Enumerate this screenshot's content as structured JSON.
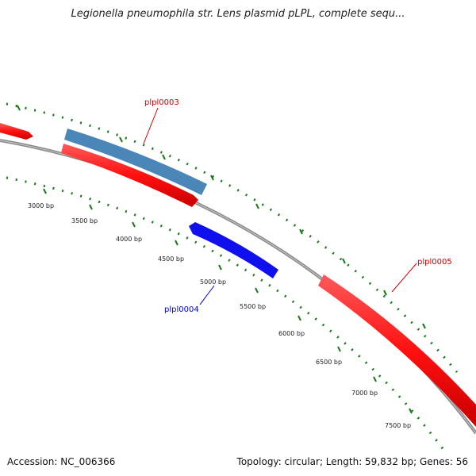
{
  "title": "Legionella pneumophila str. Lens plasmid pLPL, complete sequ...",
  "footer": {
    "accession": "Accession: NC_006366",
    "topology": "Topology: circular; Length: 59,832 bp; Genes: 56"
  },
  "colors": {
    "forward_gene": "#ff1a1a",
    "reverse_gene": "#1010ee",
    "steelblue_feature": "#4a86b8",
    "backbone": "#8a8a8a",
    "ticks": "#1a7a1a",
    "label_red": "#cc0000",
    "label_blue": "#0000cc"
  },
  "tick_labels": [
    "3000 bp",
    "3500 bp",
    "4000 bp",
    "4500 bp",
    "5000 bp",
    "5500 bp",
    "6000 bp",
    "6500 bp",
    "7000 bp",
    "7500 bp"
  ],
  "gene_labels": {
    "plpl0003": "plpl0003",
    "plpl0004": "plpl0004",
    "plpl0005": "plpl0005"
  }
}
